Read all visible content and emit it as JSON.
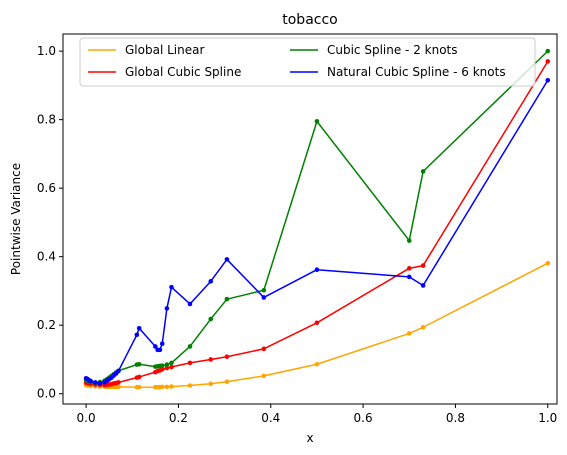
{
  "chart_data": {
    "type": "line",
    "title": "tobacco",
    "xlabel": "x",
    "ylabel": "Pointwise Variance",
    "xlim": [
      -0.05,
      1.02
    ],
    "ylim": [
      -0.03,
      1.05
    ],
    "xticks": [
      0.0,
      0.2,
      0.4,
      0.6,
      0.8,
      1.0
    ],
    "yticks": [
      0.0,
      0.2,
      0.4,
      0.6,
      0.8,
      1.0
    ],
    "xtick_labels": [
      "0.0",
      "0.2",
      "0.4",
      "0.6",
      "0.8",
      "1.0"
    ],
    "ytick_labels": [
      "0.0",
      "0.2",
      "0.4",
      "0.6",
      "0.8",
      "1.0"
    ],
    "grid": false,
    "legend_position": "top",
    "x": [
      0.0,
      0.003,
      0.006,
      0.01,
      0.02,
      0.03,
      0.04,
      0.045,
      0.05,
      0.055,
      0.06,
      0.065,
      0.07,
      0.11,
      0.115,
      0.15,
      0.155,
      0.16,
      0.165,
      0.175,
      0.185,
      0.225,
      0.27,
      0.305,
      0.385,
      0.5,
      0.7,
      0.73,
      1.0
    ],
    "series": [
      {
        "name": "Global Linear",
        "color": "#ffa500",
        "values": [
          0.025,
          0.024,
          0.024,
          0.023,
          0.022,
          0.021,
          0.021,
          0.02,
          0.02,
          0.02,
          0.02,
          0.02,
          0.02,
          0.019,
          0.019,
          0.019,
          0.019,
          0.019,
          0.02,
          0.02,
          0.021,
          0.024,
          0.029,
          0.035,
          0.052,
          0.086,
          0.176,
          0.194,
          0.381
        ]
      },
      {
        "name": "Global Cubic Spline",
        "color": "#ff0000",
        "values": [
          0.032,
          0.031,
          0.03,
          0.029,
          0.027,
          0.026,
          0.025,
          0.026,
          0.027,
          0.028,
          0.03,
          0.031,
          0.033,
          0.047,
          0.049,
          0.063,
          0.066,
          0.068,
          0.071,
          0.075,
          0.078,
          0.09,
          0.1,
          0.108,
          0.131,
          0.207,
          0.366,
          0.374,
          0.97
        ]
      },
      {
        "name": "Cubic Spline - 2 knots",
        "color": "#008000",
        "values": [
          0.04,
          0.038,
          0.036,
          0.034,
          0.032,
          0.034,
          0.038,
          0.042,
          0.047,
          0.052,
          0.057,
          0.062,
          0.067,
          0.085,
          0.086,
          0.079,
          0.08,
          0.081,
          0.082,
          0.085,
          0.09,
          0.138,
          0.218,
          0.276,
          0.302,
          0.795,
          0.447,
          0.649,
          1.0
        ]
      },
      {
        "name": "Natural Cubic Spline - 6 knots",
        "color": "#0000ff",
        "values": [
          0.045,
          0.043,
          0.04,
          0.037,
          0.033,
          0.03,
          0.033,
          0.038,
          0.042,
          0.047,
          0.053,
          0.059,
          0.066,
          0.172,
          0.191,
          0.138,
          0.128,
          0.128,
          0.146,
          0.249,
          0.311,
          0.262,
          0.328,
          0.392,
          0.281,
          0.362,
          0.341,
          0.316,
          0.915
        ]
      }
    ]
  }
}
